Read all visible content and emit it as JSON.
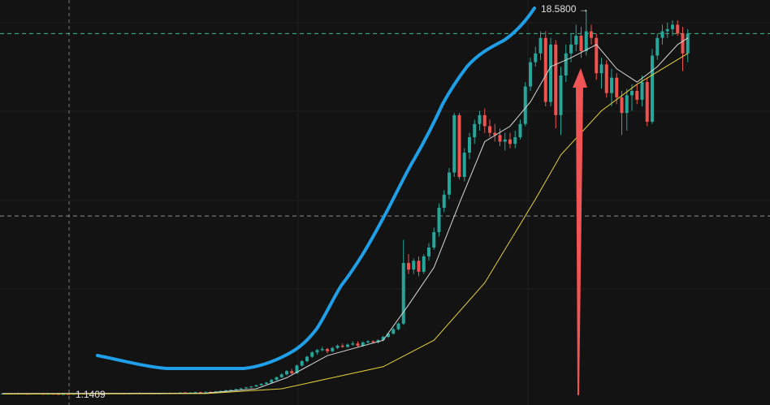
{
  "chart_data": {
    "type": "candlestick",
    "ylim": [
      0.663,
      19.02
    ],
    "up_color": "#26a69a",
    "down_color": "#ef5350",
    "candles": [
      [
        1.17,
        1.2,
        1.15,
        1.18
      ],
      [
        1.18,
        1.21,
        1.16,
        1.17
      ],
      [
        1.17,
        1.2,
        1.15,
        1.19
      ],
      [
        1.19,
        1.22,
        1.17,
        1.18
      ],
      [
        1.18,
        1.2,
        1.16,
        1.17
      ],
      [
        1.17,
        1.19,
        1.15,
        1.16
      ],
      [
        1.16,
        1.19,
        1.15,
        1.18
      ],
      [
        1.18,
        1.2,
        1.16,
        1.17
      ],
      [
        1.17,
        1.18,
        1.15,
        1.16
      ],
      [
        1.16,
        1.18,
        1.15,
        1.17
      ],
      [
        1.17,
        1.19,
        1.15,
        1.16
      ],
      [
        1.16,
        1.17,
        1.15,
        1.15
      ],
      [
        1.15,
        1.17,
        1.145,
        1.16
      ],
      [
        1.16,
        1.17,
        1.1409,
        1.15
      ],
      [
        1.15,
        1.18,
        1.15,
        1.17
      ],
      [
        1.17,
        1.19,
        1.16,
        1.18
      ],
      [
        1.18,
        1.2,
        1.16,
        1.17
      ],
      [
        1.17,
        1.2,
        1.16,
        1.19
      ],
      [
        1.19,
        1.21,
        1.17,
        1.18
      ],
      [
        1.18,
        1.2,
        1.16,
        1.17
      ],
      [
        1.17,
        1.19,
        1.16,
        1.18
      ],
      [
        1.18,
        1.21,
        1.17,
        1.2
      ],
      [
        1.2,
        1.22,
        1.17,
        1.18
      ],
      [
        1.18,
        1.2,
        1.16,
        1.19
      ],
      [
        1.19,
        1.21,
        1.17,
        1.18
      ],
      [
        1.18,
        1.2,
        1.17,
        1.19
      ],
      [
        1.19,
        1.22,
        1.18,
        1.21
      ],
      [
        1.21,
        1.23,
        1.18,
        1.19
      ],
      [
        1.19,
        1.21,
        1.17,
        1.2
      ],
      [
        1.2,
        1.22,
        1.18,
        1.19
      ],
      [
        1.19,
        1.21,
        1.17,
        1.18
      ],
      [
        1.18,
        1.2,
        1.17,
        1.19
      ],
      [
        1.19,
        1.22,
        1.18,
        1.21
      ],
      [
        1.21,
        1.23,
        1.19,
        1.2
      ],
      [
        1.2,
        1.22,
        1.18,
        1.21
      ],
      [
        1.21,
        1.24,
        1.2,
        1.23
      ],
      [
        1.23,
        1.25,
        1.21,
        1.22
      ],
      [
        1.22,
        1.24,
        1.2,
        1.23
      ],
      [
        1.23,
        1.26,
        1.22,
        1.25
      ],
      [
        1.25,
        1.27,
        1.23,
        1.24
      ],
      [
        1.24,
        1.27,
        1.23,
        1.26
      ],
      [
        1.26,
        1.28,
        1.24,
        1.25
      ],
      [
        1.25,
        1.3,
        1.24,
        1.28
      ],
      [
        1.28,
        1.32,
        1.26,
        1.3
      ],
      [
        1.3,
        1.35,
        1.29,
        1.33
      ],
      [
        1.33,
        1.37,
        1.31,
        1.35
      ],
      [
        1.35,
        1.4,
        1.33,
        1.38
      ],
      [
        1.38,
        1.44,
        1.36,
        1.42
      ],
      [
        1.42,
        1.48,
        1.4,
        1.46
      ],
      [
        1.46,
        1.52,
        1.43,
        1.5
      ],
      [
        1.5,
        1.58,
        1.48,
        1.56
      ],
      [
        1.56,
        1.65,
        1.54,
        1.62
      ],
      [
        1.62,
        1.7,
        1.6,
        1.68
      ],
      [
        1.68,
        1.85,
        1.66,
        1.8
      ],
      [
        1.8,
        1.95,
        1.78,
        1.92
      ],
      [
        1.92,
        2.1,
        1.9,
        2.05
      ],
      [
        2.05,
        2.25,
        2.0,
        2.2
      ],
      [
        2.2,
        2.3,
        2.05,
        2.1
      ],
      [
        2.1,
        2.5,
        2.08,
        2.45
      ],
      [
        2.45,
        2.7,
        2.4,
        2.65
      ],
      [
        2.65,
        2.9,
        2.6,
        2.85
      ],
      [
        2.85,
        3.1,
        2.8,
        3.05
      ],
      [
        3.05,
        3.2,
        2.95,
        3.15
      ],
      [
        3.15,
        3.3,
        3.1,
        3.2
      ],
      [
        3.2,
        3.25,
        3.0,
        3.1
      ],
      [
        3.1,
        3.3,
        3.05,
        3.25
      ],
      [
        3.25,
        3.4,
        3.2,
        3.35
      ],
      [
        3.35,
        3.45,
        3.25,
        3.3
      ],
      [
        3.3,
        3.45,
        3.25,
        3.4
      ],
      [
        3.4,
        3.55,
        3.35,
        3.45
      ],
      [
        3.45,
        3.55,
        3.3,
        3.35
      ],
      [
        3.35,
        3.55,
        3.3,
        3.5
      ],
      [
        3.5,
        3.6,
        3.45,
        3.55
      ],
      [
        3.55,
        3.6,
        3.45,
        3.5
      ],
      [
        3.5,
        3.65,
        3.45,
        3.6
      ],
      [
        3.6,
        3.8,
        3.55,
        3.75
      ],
      [
        3.75,
        3.95,
        3.7,
        3.9
      ],
      [
        3.9,
        4.15,
        3.85,
        4.1
      ],
      [
        4.1,
        4.4,
        4.05,
        4.35
      ],
      [
        4.35,
        8.15,
        4.3,
        7.1
      ],
      [
        7.1,
        7.5,
        6.6,
        6.8
      ],
      [
        6.8,
        7.3,
        6.6,
        7.2
      ],
      [
        7.2,
        7.4,
        6.5,
        6.7
      ],
      [
        6.7,
        7.5,
        6.6,
        7.4
      ],
      [
        7.4,
        8.0,
        7.2,
        7.8
      ],
      [
        7.8,
        8.7,
        7.7,
        8.5
      ],
      [
        8.5,
        9.8,
        8.3,
        9.6
      ],
      [
        9.6,
        10.4,
        9.4,
        10.2
      ],
      [
        10.2,
        11.4,
        10.0,
        11.2
      ],
      [
        11.2,
        13.9,
        11.0,
        13.8
      ],
      [
        13.8,
        13.9,
        10.9,
        11.0
      ],
      [
        11.0,
        12.3,
        10.8,
        12.1
      ],
      [
        12.1,
        13.0,
        11.8,
        12.8
      ],
      [
        12.8,
        13.6,
        12.5,
        13.4
      ],
      [
        13.4,
        14.0,
        13.1,
        13.8
      ],
      [
        13.8,
        14.1,
        13.0,
        13.3
      ],
      [
        13.3,
        13.6,
        12.8,
        13.0
      ],
      [
        13.0,
        13.4,
        12.6,
        12.9
      ],
      [
        12.9,
        13.2,
        12.4,
        12.6
      ],
      [
        12.6,
        13.0,
        12.2,
        12.7
      ],
      [
        12.7,
        13.0,
        12.3,
        12.5
      ],
      [
        12.5,
        13.1,
        12.3,
        12.8
      ],
      [
        12.8,
        13.6,
        12.7,
        13.4
      ],
      [
        13.4,
        15.3,
        13.3,
        15.1
      ],
      [
        15.1,
        16.4,
        14.9,
        16.2
      ],
      [
        16.2,
        16.9,
        16.0,
        16.6
      ],
      [
        16.6,
        17.6,
        16.3,
        17.3
      ],
      [
        17.3,
        17.6,
        14.2,
        14.4
      ],
      [
        14.4,
        17.3,
        14.2,
        17.0
      ],
      [
        17.0,
        17.2,
        13.2,
        13.8
      ],
      [
        13.8,
        16.0,
        12.9,
        15.6
      ],
      [
        15.6,
        17.0,
        15.3,
        16.6
      ],
      [
        16.6,
        17.5,
        16.2,
        17.0
      ],
      [
        17.0,
        17.9,
        16.7,
        17.4
      ],
      [
        17.4,
        17.8,
        16.4,
        16.7
      ],
      [
        16.7,
        18.58,
        16.5,
        17.6
      ],
      [
        17.6,
        17.9,
        17.0,
        17.3
      ],
      [
        17.3,
        17.5,
        15.4,
        15.7
      ],
      [
        15.7,
        16.4,
        15.0,
        16.1
      ],
      [
        16.1,
        16.3,
        14.6,
        14.8
      ],
      [
        14.8,
        15.9,
        14.2,
        15.5
      ],
      [
        15.5,
        15.7,
        14.3,
        14.6
      ],
      [
        14.6,
        14.9,
        12.9,
        13.9
      ],
      [
        13.9,
        15.0,
        13.1,
        14.7
      ],
      [
        14.7,
        15.2,
        14.0,
        14.9
      ],
      [
        14.9,
        15.2,
        14.3,
        14.5
      ],
      [
        14.5,
        15.6,
        14.2,
        15.3
      ],
      [
        15.3,
        15.5,
        13.3,
        13.5
      ],
      [
        13.5,
        16.8,
        13.4,
        16.5
      ],
      [
        16.5,
        17.5,
        16.3,
        17.3
      ],
      [
        17.3,
        17.9,
        17.0,
        17.6
      ],
      [
        17.6,
        18.0,
        17.3,
        17.7
      ],
      [
        17.7,
        18.1,
        17.4,
        17.9
      ],
      [
        17.9,
        18.1,
        17.4,
        17.5
      ],
      [
        17.5,
        17.8,
        15.8,
        16.6
      ],
      [
        16.6,
        17.7,
        16.2,
        17.5
      ]
    ],
    "moving_averages": [
      {
        "color": "#d8d8d8",
        "x": [
          0,
          40,
          50,
          56,
          64,
          75,
          80,
          85,
          90,
          95,
          100,
          104,
          108,
          112,
          117,
          121,
          125,
          129,
          133,
          135
        ],
        "values": [
          1.18,
          1.2,
          1.4,
          1.9,
          2.9,
          3.6,
          5.2,
          6.9,
          9.8,
          12.6,
          13.3,
          14.4,
          16.0,
          16.4,
          17.0,
          15.9,
          15.3,
          16.0,
          17.0,
          17.3
        ]
      },
      {
        "color": "#e6d23c",
        "x": [
          0,
          40,
          55,
          65,
          75,
          85,
          95,
          105,
          110,
          118,
          125,
          130,
          135
        ],
        "values": [
          1.16,
          1.18,
          1.4,
          1.9,
          2.4,
          3.6,
          6.2,
          10.0,
          12.0,
          14.0,
          15.2,
          15.9,
          16.6
        ]
      }
    ],
    "price_lines": [
      {
        "value": 17.5,
        "color": "#3dbd8a"
      },
      {
        "value": 9.23,
        "color": "#8a8a8a"
      }
    ],
    "high_label": {
      "value": 18.58,
      "label": "18.5800 →"
    },
    "low_label": {
      "value": 1.1409,
      "label": "1.1409"
    }
  }
}
